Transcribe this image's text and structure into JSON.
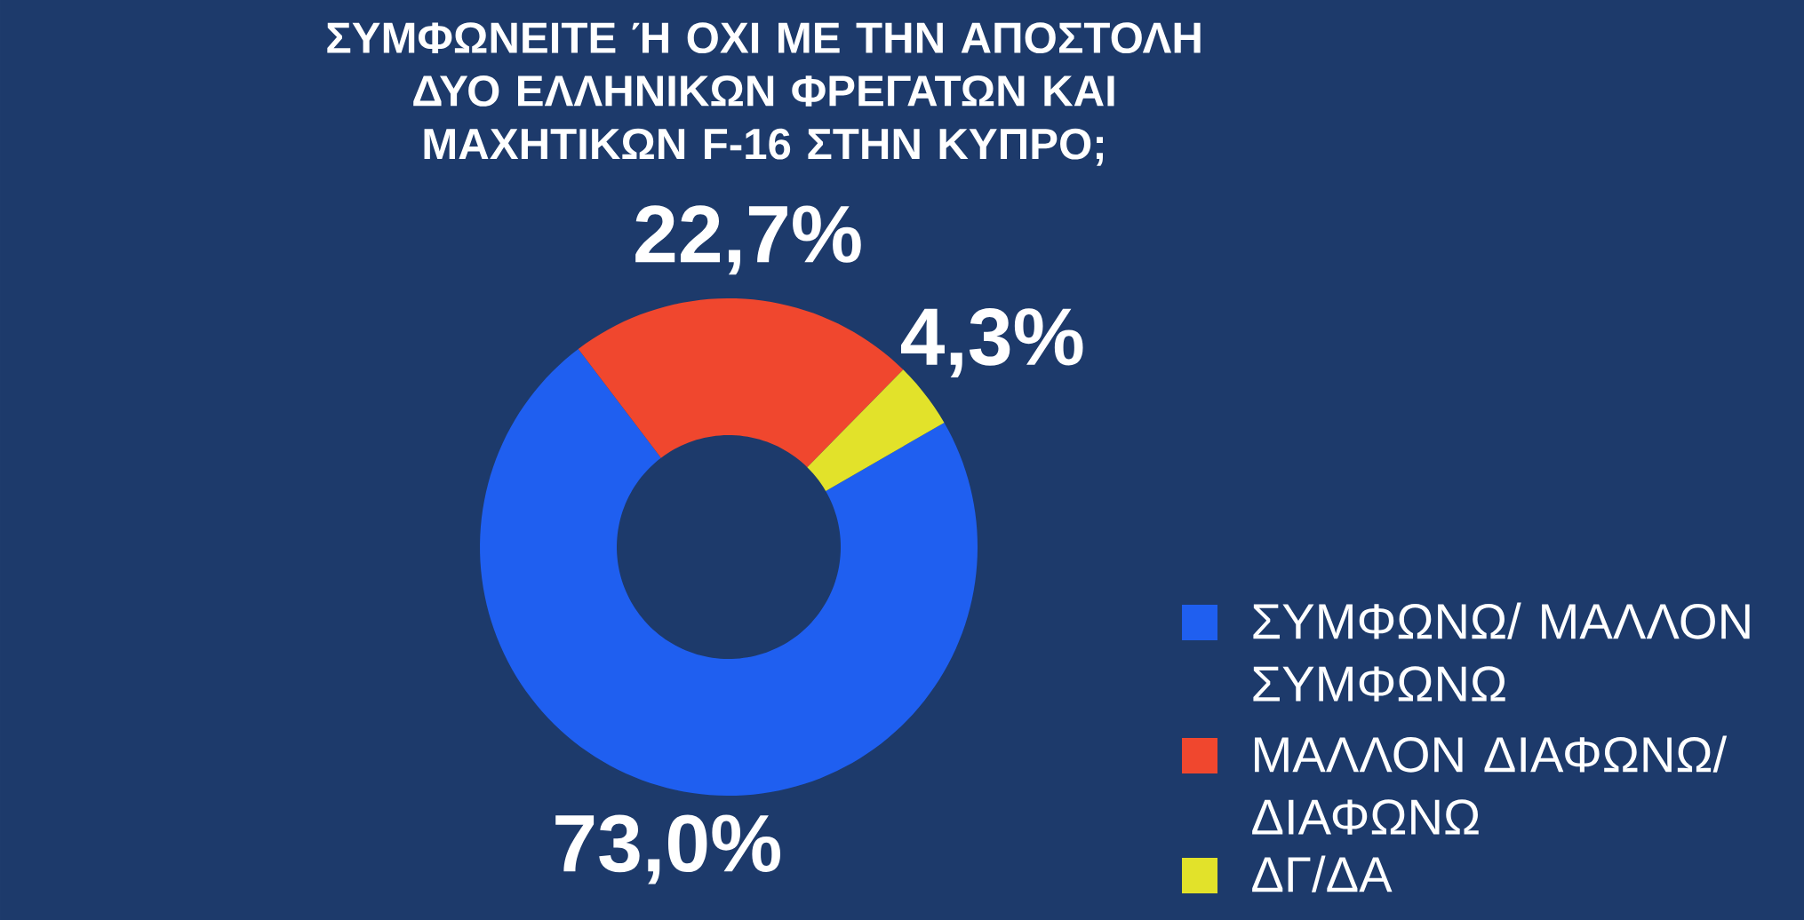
{
  "chart_data": {
    "type": "donut",
    "title": "ΣΥΜΦΩΝΕΙΤΕ Ή ΟΧΙ ΜΕ ΤΗΝ ΑΠΟΣΤΟΛΗ ΔΥΟ ΕΛΛΗΝΙΚΩΝ ΦΡΕΓΑΤΩΝ ΚΑΙ ΜΑΧΗΤΙΚΩΝ F-16 ΣΤΗΝ ΚΥΠΡΟ;",
    "categories": [
      "ΣΥΜΦΩΝΩ/ ΜΑΛΛΟΝ ΣΥΜΦΩΝΩ",
      "ΜΑΛΛΟΝ ΔΙΑΦΩΝΩ/ ΔΙΑΦΩΝΩ",
      "ΔΓ/ΔΑ"
    ],
    "values": [
      73.0,
      22.7,
      4.3
    ],
    "colors": [
      "#1f5ff0",
      "#f0472e",
      "#e2e22a"
    ],
    "value_labels": [
      "73,0%",
      "22,7%",
      "4,3%"
    ],
    "legend": "right"
  }
}
